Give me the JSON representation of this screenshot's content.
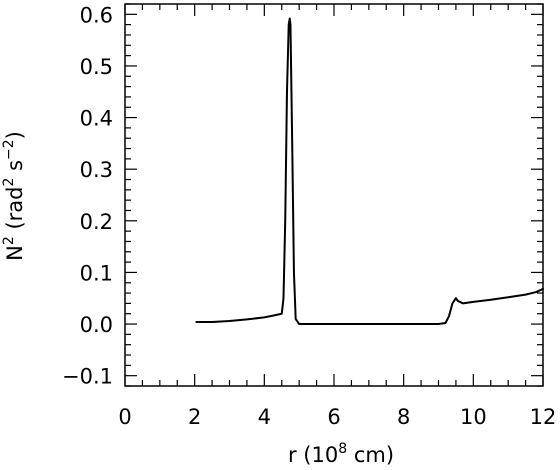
{
  "chart_data": {
    "type": "line",
    "xlabel_main": "r  (10",
    "xlabel_exp": "8",
    "xlabel_tail": " cm)",
    "ylabel_main": "N",
    "ylabel_exp1": "2",
    "ylabel_mid": " (rad",
    "ylabel_exp2": "2",
    "ylabel_mid2": " s",
    "ylabel_exp3": "−2",
    "ylabel_tail": ")",
    "xlim": [
      0,
      12
    ],
    "ylim": [
      -0.12,
      0.62
    ],
    "xticks": [
      0,
      2,
      4,
      6,
      8,
      10,
      12
    ],
    "xtick_labels": [
      "0",
      "2",
      "4",
      "6",
      "8",
      "10",
      "12"
    ],
    "yticks": [
      -0.1,
      0.0,
      0.1,
      0.2,
      0.3,
      0.4,
      0.5,
      0.6
    ],
    "ytick_labels": [
      "−0.1",
      "0.0",
      "0.1",
      "0.2",
      "0.3",
      "0.4",
      "0.5",
      "0.6"
    ],
    "grid": false,
    "series": [
      {
        "x": [
          2.05,
          2.5,
          3.0,
          3.5,
          4.0,
          4.3,
          4.5,
          4.55,
          4.6,
          4.65,
          4.7,
          4.73,
          4.75,
          4.8,
          4.85,
          4.9,
          5.0,
          5.5,
          6.0,
          7.0,
          8.0,
          9.0,
          9.2,
          9.3,
          9.4,
          9.5,
          9.55,
          9.7,
          10.0,
          10.5,
          11.0,
          11.5,
          11.8,
          12.0
        ],
        "y": [
          0.004,
          0.004,
          0.006,
          0.009,
          0.013,
          0.017,
          0.02,
          0.05,
          0.2,
          0.45,
          0.58,
          0.592,
          0.58,
          0.35,
          0.1,
          0.01,
          0.0,
          0.0,
          0.0,
          0.0,
          0.0,
          0.0,
          0.002,
          0.015,
          0.04,
          0.05,
          0.045,
          0.04,
          0.043,
          0.047,
          0.052,
          0.057,
          0.062,
          0.068
        ]
      }
    ]
  }
}
